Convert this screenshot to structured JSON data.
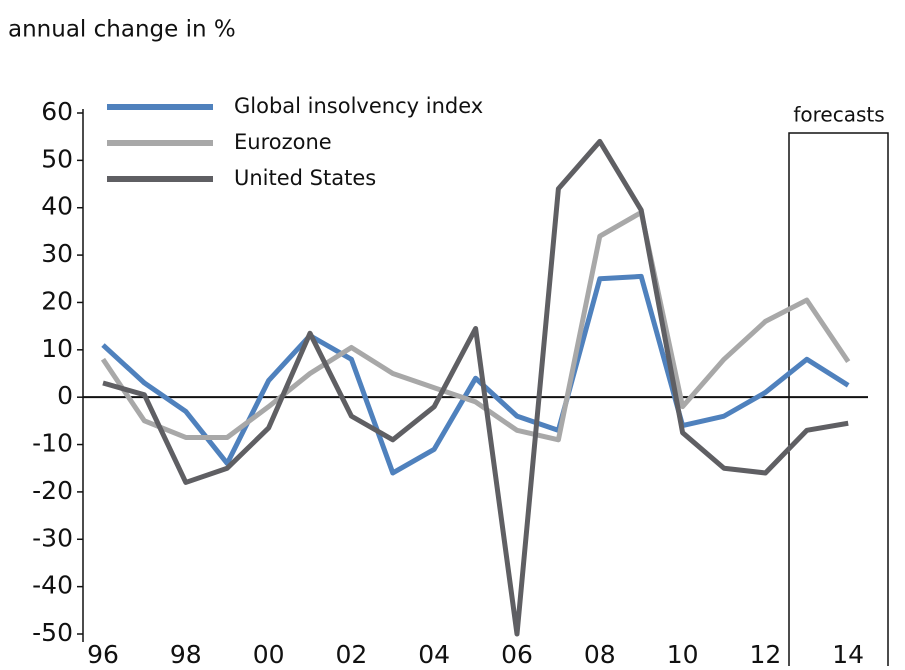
{
  "chart_data": {
    "type": "line",
    "y_label": "annual change in %",
    "annotation": "forecasts",
    "categories": [
      "96",
      null,
      "98",
      null,
      "00",
      null,
      "02",
      null,
      "04",
      null,
      "06",
      null,
      "08",
      null,
      "10",
      null,
      "12",
      null,
      "14"
    ],
    "series": [
      {
        "name": "Global insolvency index",
        "color": "#4f81bd",
        "values": [
          11,
          3,
          -3,
          -14,
          3.5,
          13,
          8,
          -16,
          -11,
          4,
          -4,
          -7,
          25,
          25.5,
          -6,
          -4,
          1,
          8,
          2.5
        ]
      },
      {
        "name": "Eurozone",
        "color": "#a8a8a8",
        "values": [
          8,
          -5,
          -8.5,
          -8.5,
          -2,
          5,
          10.5,
          5,
          2,
          -1,
          -7,
          -9,
          34,
          39,
          -2,
          8,
          16,
          20.5,
          7.5
        ]
      },
      {
        "name": "United States",
        "color": "#5f5f63",
        "values": [
          3,
          0.5,
          -18,
          -15,
          -6.5,
          13.5,
          -4,
          -9,
          -2,
          14.5,
          -50,
          44,
          54,
          39.5,
          -7.5,
          -15,
          -16,
          -7,
          -5.5
        ]
      }
    ],
    "ylim": [
      -50,
      60
    ],
    "yticks": [
      -50,
      -40,
      -30,
      -20,
      -10,
      0,
      10,
      20,
      30,
      40,
      50,
      60
    ],
    "legend": "top-left"
  }
}
